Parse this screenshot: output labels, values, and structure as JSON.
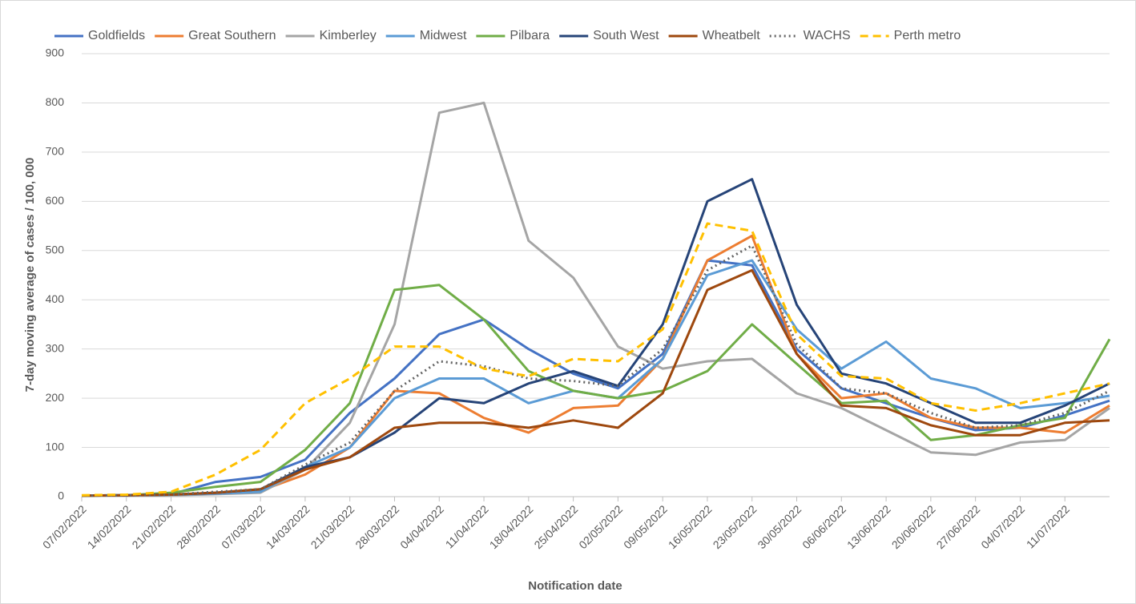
{
  "chart_data": {
    "type": "line",
    "y_label": "7-day moving average of cases / 100, 000",
    "x_label": "Notification date",
    "x": [
      "07/02/2022",
      "14/02/2022",
      "21/02/2022",
      "28/02/2022",
      "07/03/2022",
      "14/03/2022",
      "21/03/2022",
      "28/03/2022",
      "04/04/2022",
      "11/04/2022",
      "18/04/2022",
      "25/04/2022",
      "02/05/2022",
      "09/05/2022",
      "16/05/2022",
      "23/05/2022",
      "30/05/2022",
      "06/06/2022",
      "13/06/2022",
      "20/06/2022",
      "27/06/2022",
      "04/07/2022",
      "11/07/2022",
      "18/07/2022"
    ],
    "xlim": [
      "07/02/2022",
      "18/07/2022"
    ],
    "xticks": [
      "07/02/2022",
      "14/02/2022",
      "21/02/2022",
      "28/02/2022",
      "07/03/2022",
      "14/03/2022",
      "21/03/2022",
      "28/03/2022",
      "04/04/2022",
      "11/04/2022",
      "18/04/2022",
      "25/04/2022",
      "02/05/2022",
      "09/05/2022",
      "16/05/2022",
      "23/05/2022",
      "30/05/2022",
      "06/06/2022",
      "13/06/2022",
      "20/06/2022",
      "27/06/2022",
      "04/07/2022",
      "11/07/2022"
    ],
    "ylim": [
      0,
      900
    ],
    "yticks": [
      0,
      100,
      200,
      300,
      400,
      500,
      600,
      700,
      800,
      900
    ],
    "grid": true,
    "legend": "top",
    "series": [
      {
        "name": "Goldfields",
        "color": "#4472c4",
        "line_style": "solid",
        "values": [
          2,
          3,
          5,
          30,
          40,
          75,
          170,
          240,
          330,
          360,
          300,
          250,
          220,
          290,
          480,
          470,
          300,
          220,
          190,
          160,
          135,
          140,
          165,
          195
        ]
      },
      {
        "name": "Great Southern",
        "color": "#ed7d31",
        "line_style": "solid",
        "values": [
          2,
          3,
          4,
          8,
          12,
          45,
          100,
          215,
          210,
          160,
          130,
          180,
          185,
          280,
          480,
          530,
          290,
          200,
          210,
          160,
          140,
          140,
          130,
          185
        ]
      },
      {
        "name": "Kimberley",
        "color": "#a5a5a5",
        "line_style": "solid",
        "values": [
          2,
          2,
          3,
          5,
          8,
          55,
          150,
          350,
          780,
          800,
          520,
          445,
          305,
          260,
          275,
          280,
          210,
          180,
          135,
          90,
          85,
          110,
          115,
          180
        ]
      },
      {
        "name": "Midwest",
        "color": "#5b9bd5",
        "line_style": "solid",
        "values": [
          2,
          3,
          4,
          6,
          10,
          60,
          100,
          200,
          240,
          240,
          190,
          215,
          200,
          280,
          450,
          480,
          340,
          260,
          315,
          240,
          220,
          180,
          190,
          205
        ]
      },
      {
        "name": "Pilbara",
        "color": "#70ad47",
        "line_style": "solid",
        "values": [
          2,
          3,
          8,
          20,
          30,
          95,
          190,
          420,
          430,
          360,
          255,
          215,
          200,
          215,
          255,
          350,
          270,
          190,
          195,
          115,
          125,
          145,
          160,
          320
        ]
      },
      {
        "name": "South West",
        "color": "#264478",
        "line_style": "solid",
        "values": [
          2,
          3,
          4,
          8,
          15,
          60,
          80,
          130,
          200,
          190,
          230,
          255,
          225,
          350,
          600,
          645,
          390,
          250,
          230,
          190,
          150,
          150,
          185,
          230
        ]
      },
      {
        "name": "Wheatbelt",
        "color": "#9e480e",
        "line_style": "solid",
        "values": [
          2,
          3,
          4,
          8,
          15,
          55,
          80,
          140,
          150,
          150,
          140,
          155,
          140,
          210,
          420,
          460,
          290,
          185,
          180,
          145,
          125,
          125,
          150,
          155
        ]
      },
      {
        "name": "WACHS",
        "color": "#636363",
        "line_style": "dotted",
        "values": [
          2,
          3,
          4,
          10,
          15,
          65,
          110,
          215,
          275,
          265,
          240,
          235,
          225,
          300,
          460,
          510,
          310,
          220,
          210,
          170,
          140,
          145,
          170,
          215
        ]
      },
      {
        "name": "Perth metro",
        "color": "#ffc000",
        "line_style": "dashed",
        "values": [
          3,
          4,
          10,
          45,
          95,
          190,
          240,
          305,
          305,
          260,
          245,
          280,
          275,
          340,
          555,
          540,
          330,
          245,
          240,
          190,
          175,
          190,
          210,
          230
        ]
      }
    ]
  }
}
